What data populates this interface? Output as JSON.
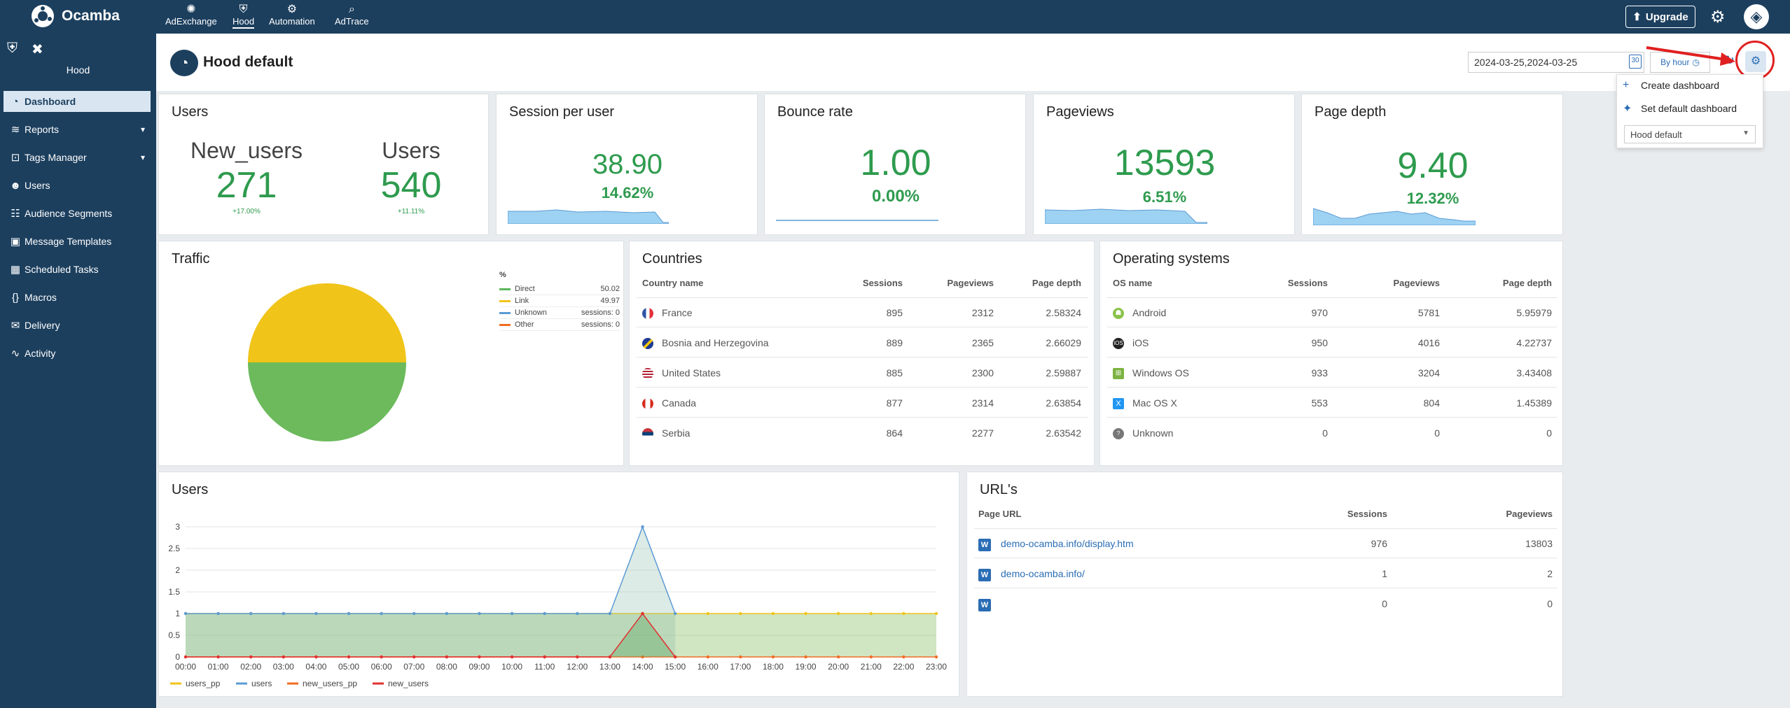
{
  "app": {
    "name": "Ocamba"
  },
  "topnav": [
    {
      "label": "AdExchange",
      "icon": "adexchange-icon"
    },
    {
      "label": "Hood",
      "icon": "hood-icon"
    },
    {
      "label": "Automation",
      "icon": "automation-icon"
    },
    {
      "label": "AdTrace",
      "icon": "adtrace-icon"
    }
  ],
  "upgrade_label": "Upgrade",
  "sidebar": {
    "title": "Hood",
    "items": [
      {
        "label": "Dashboard",
        "icon": "dashboard-icon"
      },
      {
        "label": "Reports",
        "icon": "reports-icon"
      },
      {
        "label": "Tags Manager",
        "icon": "tags-icon"
      },
      {
        "label": "Users",
        "icon": "users-icon"
      },
      {
        "label": "Audience Segments",
        "icon": "segments-icon"
      },
      {
        "label": "Message Templates",
        "icon": "templates-icon"
      },
      {
        "label": "Scheduled Tasks",
        "icon": "tasks-icon"
      },
      {
        "label": "Macros",
        "icon": "macros-icon"
      },
      {
        "label": "Delivery",
        "icon": "delivery-icon"
      },
      {
        "label": "Activity",
        "icon": "activity-icon"
      }
    ]
  },
  "header": {
    "title": "Hood default",
    "date_range": "2024-03-25,2024-03-25",
    "calendar_day": "30",
    "interval": "By hour"
  },
  "settings_menu": {
    "create": "Create dashboard",
    "set_default": "Set default dashboard",
    "select_value": "Hood default"
  },
  "kpi": {
    "users": {
      "title": "Users",
      "new_users_label": "New_users",
      "new_users_value": "271",
      "new_users_change": "+17.00%",
      "users_label": "Users",
      "users_value": "540",
      "users_change": "+11.11%"
    },
    "session": {
      "title": "Session per user",
      "value": "38.90",
      "change": "14.62%"
    },
    "bounce": {
      "title": "Bounce rate",
      "value": "1.00",
      "change": "0.00%"
    },
    "pageviews": {
      "title": "Pageviews",
      "value": "13593",
      "change": "6.51%"
    },
    "depth": {
      "title": "Page depth",
      "value": "9.40",
      "change": "12.32%"
    }
  },
  "traffic": {
    "title": "Traffic",
    "pct_header": "%",
    "legend": [
      {
        "label": "Direct",
        "value": "50.02",
        "color": "#5cb85c"
      },
      {
        "label": "Link",
        "value": "49.97",
        "color": "#f0c419"
      },
      {
        "label": "Unknown",
        "value": "sessions: 0",
        "color": "#5b9bd5"
      },
      {
        "label": "Other",
        "value": "sessions: 0",
        "color": "#f26c22"
      }
    ]
  },
  "countries": {
    "title": "Countries",
    "headers": [
      "Country name",
      "Sessions",
      "Pageviews",
      "Page depth"
    ],
    "rows": [
      {
        "name": "France",
        "sessions": "895",
        "pageviews": "2312",
        "depth": "2.58324",
        "flag": "#2f55a4"
      },
      {
        "name": "Bosnia and Herzegovina",
        "sessions": "889",
        "pageviews": "2365",
        "depth": "2.66029",
        "flag": "#f6c700"
      },
      {
        "name": "United States",
        "sessions": "885",
        "pageviews": "2300",
        "depth": "2.59887",
        "flag": "#b22234"
      },
      {
        "name": "Canada",
        "sessions": "877",
        "pageviews": "2314",
        "depth": "2.63854",
        "flag": "#d52b1e"
      },
      {
        "name": "Serbia",
        "sessions": "864",
        "pageviews": "2277",
        "depth": "2.63542",
        "flag": "#c6363c"
      }
    ]
  },
  "os": {
    "title": "Operating systems",
    "headers": [
      "OS name",
      "Sessions",
      "Pageviews",
      "Page depth"
    ],
    "rows": [
      {
        "name": "Android",
        "sessions": "970",
        "pageviews": "5781",
        "depth": "5.95979",
        "icon": "android-icon",
        "color": "#8bc34a"
      },
      {
        "name": "iOS",
        "sessions": "950",
        "pageviews": "4016",
        "depth": "4.22737",
        "icon": "apple-icon",
        "color": "#222"
      },
      {
        "name": "Windows OS",
        "sessions": "933",
        "pageviews": "3204",
        "depth": "3.43408",
        "icon": "windows-icon",
        "color": "#7cb342"
      },
      {
        "name": "Mac OS X",
        "sessions": "553",
        "pageviews": "804",
        "depth": "1.45389",
        "icon": "macos-icon",
        "color": "#2196f3"
      },
      {
        "name": "Unknown",
        "sessions": "0",
        "pageviews": "0",
        "depth": "0",
        "icon": "unknown-os-icon",
        "color": "#777"
      }
    ]
  },
  "urls": {
    "title": "URL's",
    "headers": [
      "Page URL",
      "Sessions",
      "Pageviews"
    ],
    "rows": [
      {
        "url": "demo-ocamba.info/display.htm",
        "sessions": "976",
        "pageviews": "13803"
      },
      {
        "url": "demo-ocamba.info/",
        "sessions": "1",
        "pageviews": "2"
      },
      {
        "url": "",
        "sessions": "0",
        "pageviews": "0"
      }
    ]
  },
  "chart_data": {
    "type": "area",
    "title": "Users",
    "x": [
      "00:00",
      "01:00",
      "02:00",
      "03:00",
      "04:00",
      "05:00",
      "06:00",
      "07:00",
      "08:00",
      "09:00",
      "10:00",
      "11:00",
      "12:00",
      "13:00",
      "14:00",
      "15:00",
      "16:00",
      "17:00",
      "18:00",
      "19:00",
      "20:00",
      "21:00",
      "22:00",
      "23:00"
    ],
    "ylim": [
      0,
      3
    ],
    "yticks": [
      "3",
      "2.5",
      "2",
      "1.5",
      "1",
      "0.5",
      "0"
    ],
    "series": [
      {
        "name": "users_pp",
        "color": "#f0c419",
        "values": [
          1,
          1,
          1,
          1,
          1,
          1,
          1,
          1,
          1,
          1,
          1,
          1,
          1,
          1,
          1,
          1,
          1,
          1,
          1,
          1,
          1,
          1,
          1,
          1
        ]
      },
      {
        "name": "users",
        "color": "#5b9bd5",
        "values": [
          1,
          1,
          1,
          1,
          1,
          1,
          1,
          1,
          1,
          1,
          1,
          1,
          1,
          1,
          3,
          1,
          null,
          null,
          null,
          null,
          null,
          null,
          null,
          null
        ]
      },
      {
        "name": "new_users_pp",
        "color": "#f26c22",
        "values": [
          0,
          0,
          0,
          0,
          0,
          0,
          0,
          0,
          0,
          0,
          0,
          0,
          0,
          0,
          0,
          0,
          0,
          0,
          0,
          0,
          0,
          0,
          0,
          0
        ]
      },
      {
        "name": "new_users",
        "color": "#e03030",
        "values": [
          0,
          0,
          0,
          0,
          0,
          0,
          0,
          0,
          0,
          0,
          0,
          0,
          0,
          0,
          1,
          0,
          null,
          null,
          null,
          null,
          null,
          null,
          null,
          null
        ]
      }
    ],
    "grid": true,
    "legend": "bottom-left"
  }
}
